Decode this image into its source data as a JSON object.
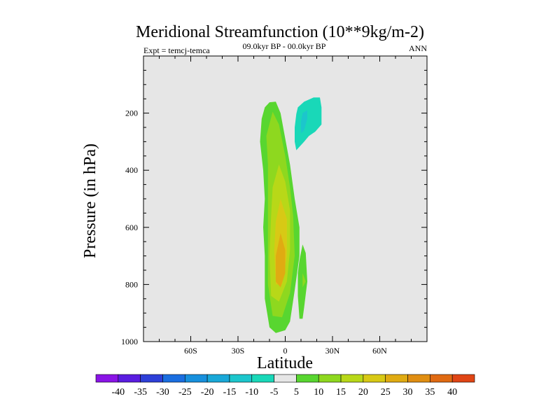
{
  "chart_data": {
    "type": "contour",
    "title": "Meridional Streamfunction (10**9kg/m-2)",
    "subtitle": "09.0kyr BP - 00.0kyr BP",
    "left_label": "Expt = temcj-temca",
    "right_label": "ANN",
    "xlabel": "Latitude",
    "ylabel": "Pressure (in hPa)",
    "xlim": [
      -90,
      90
    ],
    "ylim": [
      0,
      1000
    ],
    "y_inverted": true,
    "x_ticks": [
      {
        "value": -60,
        "label": "60S"
      },
      {
        "value": -30,
        "label": "30S"
      },
      {
        "value": 0,
        "label": "0"
      },
      {
        "value": 30,
        "label": "30N"
      },
      {
        "value": 60,
        "label": "60N"
      }
    ],
    "y_ticks": [
      {
        "value": 200,
        "label": "200"
      },
      {
        "value": 400,
        "label": "400"
      },
      {
        "value": 600,
        "label": "600"
      },
      {
        "value": 800,
        "label": "800"
      },
      {
        "value": 1000,
        "label": "1000"
      }
    ],
    "colorbar": {
      "levels": [
        -40,
        -35,
        -30,
        -25,
        -20,
        -15,
        -10,
        -5,
        5,
        10,
        15,
        20,
        25,
        30,
        35,
        40
      ],
      "colors": [
        "#8a14e6",
        "#5a1de0",
        "#2d3fd8",
        "#1a6ee0",
        "#1790dd",
        "#19a8d8",
        "#1cc6cc",
        "#19d8b8",
        "#e6e6e6",
        "#58d630",
        "#8ed81f",
        "#b8d818",
        "#d8c915",
        "#e0ab12",
        "#e08e12",
        "#e06a12",
        "#e04515"
      ]
    },
    "regions": [
      {
        "name": "positive-cell-5",
        "color_index": 9,
        "points": [
          [
            -10,
            162
          ],
          [
            -6,
            160
          ],
          [
            -3,
            200
          ],
          [
            3,
            380
          ],
          [
            6,
            500
          ],
          [
            9,
            600
          ],
          [
            9,
            700
          ],
          [
            6,
            820
          ],
          [
            3,
            930
          ],
          [
            0,
            960
          ],
          [
            -6,
            970
          ],
          [
            -10,
            950
          ],
          [
            -13,
            850
          ],
          [
            -13,
            700
          ],
          [
            -14,
            600
          ],
          [
            -13,
            500
          ],
          [
            -14,
            400
          ],
          [
            -16,
            300
          ],
          [
            -15,
            220
          ],
          [
            -13,
            180
          ]
        ]
      },
      {
        "name": "positive-cell-10",
        "color_index": 10,
        "points": [
          [
            -8,
            195
          ],
          [
            -4,
            240
          ],
          [
            0,
            350
          ],
          [
            3,
            460
          ],
          [
            5,
            560
          ],
          [
            6,
            700
          ],
          [
            3,
            830
          ],
          [
            -2,
            915
          ],
          [
            -8,
            910
          ],
          [
            -11,
            800
          ],
          [
            -11,
            650
          ],
          [
            -11,
            500
          ],
          [
            -11,
            380
          ],
          [
            -12,
            280
          ]
        ]
      },
      {
        "name": "positive-cell-15",
        "color_index": 11,
        "points": [
          [
            -4,
            380
          ],
          [
            0,
            440
          ],
          [
            3,
            540
          ],
          [
            3,
            680
          ],
          [
            1,
            790
          ],
          [
            -4,
            860
          ],
          [
            -9,
            840
          ],
          [
            -10,
            700
          ],
          [
            -9,
            560
          ],
          [
            -8,
            460
          ]
        ]
      },
      {
        "name": "positive-cell-20",
        "color_index": 12,
        "points": [
          [
            -3,
            500
          ],
          [
            1,
            570
          ],
          [
            1,
            700
          ],
          [
            -2,
            800
          ],
          [
            -6,
            800
          ],
          [
            -7,
            680
          ],
          [
            -6,
            580
          ]
        ]
      },
      {
        "name": "positive-cell-25",
        "color_index": 13,
        "points": [
          [
            -3,
            620
          ],
          [
            0,
            680
          ],
          [
            0,
            760
          ],
          [
            -3,
            810
          ],
          [
            -6,
            790
          ],
          [
            -6,
            700
          ]
        ]
      },
      {
        "name": "positive-cell-5-nh",
        "color_index": 9,
        "points": [
          [
            9,
            715
          ],
          [
            11,
            660
          ],
          [
            13,
            690
          ],
          [
            14,
            790
          ],
          [
            12,
            880
          ],
          [
            11,
            920
          ],
          [
            9,
            920
          ],
          [
            8,
            840
          ],
          [
            8,
            760
          ]
        ]
      },
      {
        "name": "positive-cell-10-nh",
        "color_index": 10,
        "points": [
          [
            11,
            760
          ],
          [
            13,
            790
          ],
          [
            11,
            810
          ]
        ]
      },
      {
        "name": "negative-cell-5",
        "color_index": 7,
        "points": [
          [
            7,
            203
          ],
          [
            8,
            180
          ],
          [
            12,
            160
          ],
          [
            18,
            145
          ],
          [
            22,
            145
          ],
          [
            23,
            180
          ],
          [
            23,
            240
          ],
          [
            19,
            265
          ],
          [
            15,
            280
          ],
          [
            12,
            300
          ],
          [
            7,
            330
          ],
          [
            6,
            300
          ],
          [
            6,
            250
          ]
        ]
      },
      {
        "name": "negative-cell-10",
        "color_index": 6,
        "points": [
          [
            10,
            230
          ],
          [
            11,
            200
          ],
          [
            14,
            190
          ],
          [
            14,
            220
          ],
          [
            12,
            260
          ],
          [
            10,
            270
          ]
        ]
      }
    ]
  }
}
